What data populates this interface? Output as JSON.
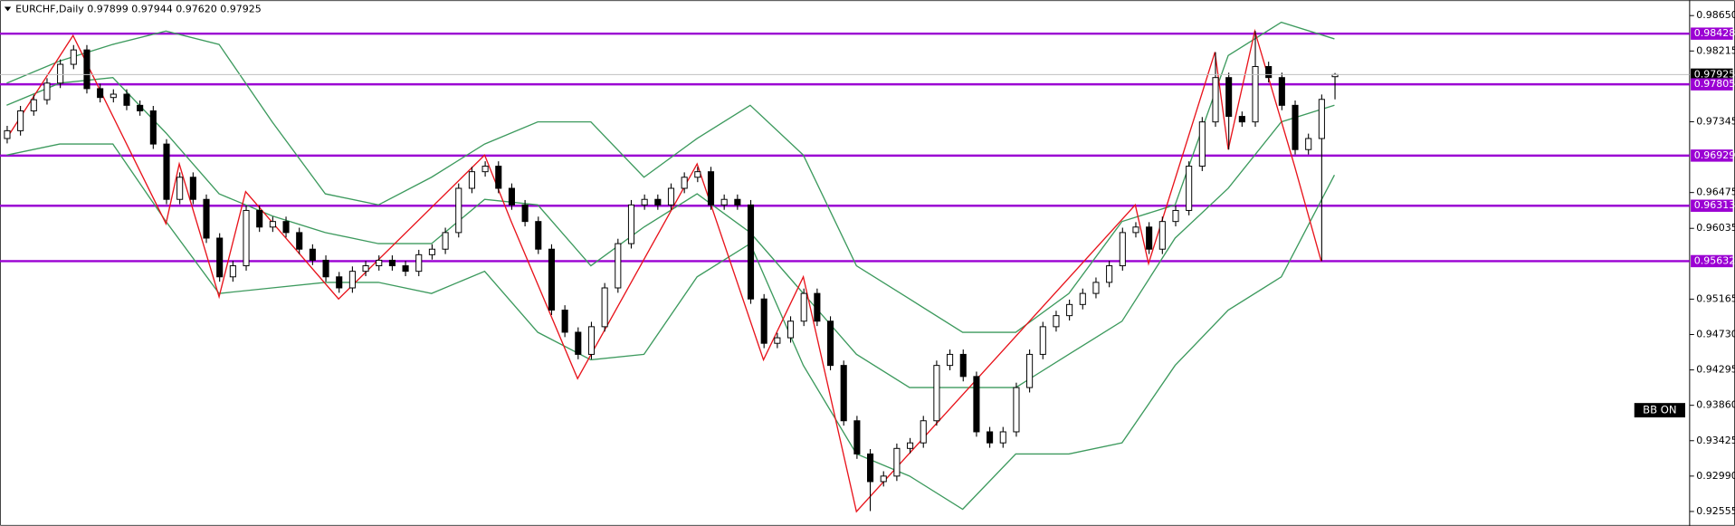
{
  "chart_data": {
    "type": "candlestick",
    "title": "EURCHF,Daily  0.97899 0.97944 0.97620 0.97925",
    "badge": "BB ON",
    "ylim": [
      0.92378,
      0.9884
    ],
    "yticks": [
      {
        "value": 0.9865,
        "label": "0.98650"
      },
      0.98215,
      0.97345,
      0.96475,
      0.96035,
      0.95165,
      {
        "value": 0.9473,
        "label": "0.94730"
      },
      0.94295,
      {
        "value": 0.9386,
        "label": "0.93860"
      },
      0.93425,
      {
        "value": 0.9299,
        "label": "0.92990"
      },
      0.92555
    ],
    "open": [
      0.97139,
      0.97235,
      0.97479,
      0.97616,
      0.9782,
      0.98051,
      0.98228,
      0.97752,
      0.97643,
      0.97684,
      0.97547,
      0.97479,
      0.97071,
      0.96391,
      0.96663,
      0.96391,
      0.95915,
      0.95439,
      0.95575,
      0.96255,
      0.96051,
      0.96119,
      0.95983,
      0.95779,
      0.95643,
      0.95439,
      0.95303,
      0.95507,
      0.95575,
      0.95643,
      0.95575,
      0.95507,
      0.95711,
      0.95779,
      0.95983,
      0.96527,
      0.96731,
      0.96799,
      0.96527,
      0.96323,
      0.96119,
      0.95779,
      0.9503,
      0.94758,
      0.94486,
      0.94826,
      0.95303,
      0.95847,
      0.96323,
      0.96391,
      0.96323,
      0.96527,
      0.96663,
      0.96731,
      0.96323,
      0.96391,
      0.96323,
      0.95167,
      0.94622,
      0.9469,
      0.94894,
      0.95235,
      0.94894,
      0.9435,
      0.9367,
      0.93262,
      0.92922,
      0.9299,
      0.9333,
      0.93398,
      0.9367,
      0.9435,
      0.94486,
      0.94214,
      0.93534,
      0.93398,
      0.93534,
      0.94078,
      0.94486,
      0.94826,
      0.94962,
      0.95099,
      0.95235,
      0.95371,
      0.95575,
      0.95983,
      0.96051,
      0.95779,
      0.96119,
      0.96255,
      0.96799,
      0.97343,
      0.97888,
      0.97411,
      0.97343,
      0.98024,
      0.97888,
      0.97547,
      0.97003,
      0.97139,
      0.97899
    ],
    "high": [
      0.97295,
      0.97539,
      0.97676,
      0.9788,
      0.98111,
      0.98288,
      0.98288,
      0.97812,
      0.97744,
      0.97744,
      0.97607,
      0.97539,
      0.97131,
      0.96723,
      0.96723,
      0.96451,
      0.95975,
      0.95635,
      0.96315,
      0.96315,
      0.96179,
      0.96179,
      0.96043,
      0.95839,
      0.95703,
      0.95499,
      0.95567,
      0.95635,
      0.95703,
      0.95703,
      0.95635,
      0.95771,
      0.95839,
      0.96043,
      0.96587,
      0.96791,
      0.96859,
      0.96859,
      0.96587,
      0.96383,
      0.96179,
      0.95839,
      0.9509,
      0.94818,
      0.94886,
      0.95363,
      0.95907,
      0.96383,
      0.96451,
      0.96451,
      0.96587,
      0.96723,
      0.96791,
      0.96791,
      0.96451,
      0.96451,
      0.96383,
      0.95227,
      0.9475,
      0.94954,
      0.95295,
      0.95295,
      0.94954,
      0.9441,
      0.9373,
      0.93322,
      0.9305,
      0.9339,
      0.93458,
      0.9373,
      0.9441,
      0.94546,
      0.94546,
      0.94274,
      0.93594,
      0.93594,
      0.94138,
      0.94546,
      0.94886,
      0.95022,
      0.95159,
      0.95295,
      0.95431,
      0.95635,
      0.96043,
      0.96111,
      0.96111,
      0.96179,
      0.96315,
      0.96859,
      0.97403,
      0.982,
      0.97948,
      0.97471,
      0.9846,
      0.98084,
      0.97948,
      0.97607,
      0.97199,
      0.9768,
      0.97944
    ],
    "low": [
      0.97079,
      0.97175,
      0.97419,
      0.97556,
      0.9776,
      0.97991,
      0.97692,
      0.97583,
      0.97583,
      0.97487,
      0.97419,
      0.97011,
      0.96331,
      0.96331,
      0.96331,
      0.95855,
      0.95379,
      0.95379,
      0.95515,
      0.95991,
      0.95991,
      0.95923,
      0.95719,
      0.95583,
      0.95379,
      0.95243,
      0.95243,
      0.95447,
      0.95515,
      0.95515,
      0.95447,
      0.95447,
      0.95651,
      0.95719,
      0.95923,
      0.96467,
      0.96671,
      0.96467,
      0.96263,
      0.96059,
      0.95719,
      0.9497,
      0.94698,
      0.94426,
      0.94426,
      0.94766,
      0.95243,
      0.95787,
      0.96263,
      0.96263,
      0.96263,
      0.96467,
      0.96603,
      0.96263,
      0.96263,
      0.96263,
      0.95107,
      0.94562,
      0.94562,
      0.9463,
      0.94834,
      0.94834,
      0.9429,
      0.9361,
      0.93202,
      0.9256,
      0.92862,
      0.9293,
      0.9327,
      0.93338,
      0.9361,
      0.9429,
      0.94154,
      0.93474,
      0.93338,
      0.93338,
      0.93474,
      0.94018,
      0.94426,
      0.94766,
      0.94902,
      0.95039,
      0.95175,
      0.95311,
      0.95515,
      0.95923,
      0.95719,
      0.95719,
      0.96059,
      0.96195,
      0.96739,
      0.97283,
      0.97003,
      0.97283,
      0.97283,
      0.97828,
      0.97487,
      0.96943,
      0.96943,
      0.95632,
      0.9762
    ],
    "close": [
      0.97235,
      0.97479,
      0.97616,
      0.9782,
      0.98051,
      0.98228,
      0.97752,
      0.97643,
      0.97684,
      0.97547,
      0.97479,
      0.97071,
      0.96391,
      0.96663,
      0.96391,
      0.95915,
      0.95439,
      0.95575,
      0.96255,
      0.96051,
      0.96119,
      0.95983,
      0.95779,
      0.95643,
      0.95439,
      0.95303,
      0.95507,
      0.95575,
      0.95643,
      0.95575,
      0.95507,
      0.95711,
      0.95779,
      0.95983,
      0.96527,
      0.96731,
      0.96799,
      0.96527,
      0.96323,
      0.96119,
      0.95779,
      0.9503,
      0.94758,
      0.94486,
      0.94826,
      0.95303,
      0.95847,
      0.96323,
      0.96391,
      0.96323,
      0.96527,
      0.96663,
      0.96731,
      0.96323,
      0.96391,
      0.96323,
      0.95167,
      0.94622,
      0.9469,
      0.94894,
      0.95235,
      0.94894,
      0.9435,
      0.9367,
      0.93262,
      0.92922,
      0.9299,
      0.9333,
      0.93398,
      0.9367,
      0.9435,
      0.94486,
      0.94214,
      0.93534,
      0.93398,
      0.93534,
      0.94078,
      0.94486,
      0.94826,
      0.94962,
      0.95099,
      0.95235,
      0.95371,
      0.95575,
      0.95983,
      0.96051,
      0.95779,
      0.96119,
      0.96255,
      0.96799,
      0.97343,
      0.97888,
      0.97411,
      0.97343,
      0.98024,
      0.97888,
      0.97547,
      0.97003,
      0.97139,
      0.9762,
      0.97925
    ],
    "bands": {
      "color": "#3d9a5e",
      "x": [
        0,
        4,
        8,
        12,
        16,
        20,
        24,
        28,
        32,
        36,
        40,
        44,
        48,
        52,
        56,
        60,
        64,
        68,
        72,
        76,
        80,
        84,
        88,
        92,
        96,
        100
      ],
      "upper": [
        0.9782,
        0.98092,
        0.98296,
        0.98459,
        0.98296,
        0.97343,
        0.96459,
        0.96323,
        0.96663,
        0.97071,
        0.97343,
        0.97343,
        0.96663,
        0.97139,
        0.97547,
        0.96935,
        0.95575,
        0.95167,
        0.94758,
        0.94758,
        0.95235,
        0.96119,
        0.96323,
        0.9816,
        0.98568,
        0.98364
      ],
      "middle": [
        0.97547,
        0.9782,
        0.97888,
        0.97207,
        0.96459,
        0.96187,
        0.95983,
        0.95847,
        0.95847,
        0.96391,
        0.96323,
        0.95575,
        0.96051,
        0.96459,
        0.95983,
        0.95235,
        0.94486,
        0.94078,
        0.94078,
        0.94078,
        0.94486,
        0.94894,
        0.95915,
        0.96527,
        0.97343,
        0.97547
      ],
      "lower": [
        0.96935,
        0.97071,
        0.97071,
        0.96119,
        0.95235,
        0.95303,
        0.95371,
        0.95371,
        0.95235,
        0.95507,
        0.94758,
        0.94418,
        0.94486,
        0.95439,
        0.95847,
        0.9435,
        0.93262,
        0.9299,
        0.92582,
        0.93262,
        0.93262,
        0.93398,
        0.9435,
        0.9503,
        0.95439,
        0.9669
      ]
    },
    "zigzag": {
      "color": "#e8141c",
      "x": [
        0,
        5,
        12,
        13,
        16,
        18,
        25,
        36,
        38,
        43,
        52,
        57,
        60,
        64,
        85,
        86,
        91,
        92,
        94,
        97,
        99
      ],
      "values": [
        0.97139,
        0.98405,
        0.96092,
        0.96826,
        0.95194,
        0.96486,
        0.95167,
        0.96935,
        0.96119,
        0.94187,
        0.96826,
        0.94418,
        0.95439,
        0.92554,
        0.96323,
        0.95602,
        0.982,
        0.97003,
        0.98459,
        0.96799,
        0.95632
      ]
    },
    "level_color": "#9b00d3",
    "levels": [
      {
        "value": 0.98428,
        "label": "0.98428"
      },
      {
        "value": 0.97805,
        "label": "0.97805"
      },
      {
        "value": 0.96929,
        "label": "0.96929"
      },
      {
        "value": 0.96313,
        "label": "0.96313"
      },
      {
        "value": 0.95632,
        "label": "0.95632"
      }
    ]
  }
}
